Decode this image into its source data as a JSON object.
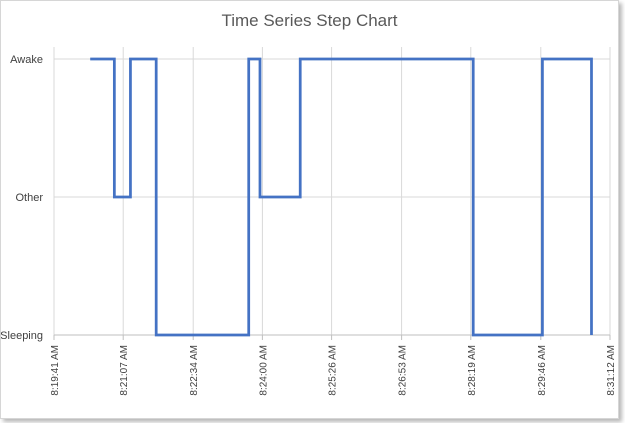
{
  "chart_data": {
    "type": "line",
    "title": "Time Series Step Chart",
    "xlabel": "",
    "ylabel": "",
    "y_categories": [
      "Sleeping",
      "Other",
      "Awake"
    ],
    "x_tick_labels": [
      "8:19:41 AM",
      "8:21:07 AM",
      "8:22:34 AM",
      "8:24:00 AM",
      "8:25:26 AM",
      "8:26:53 AM",
      "8:28:19 AM",
      "8:29:46 AM",
      "8:31:12 AM"
    ],
    "x_range": [
      "8:19:41 AM",
      "8:31:12 AM"
    ],
    "series": [
      {
        "points": [
          {
            "x": "8:20:26 AM",
            "y": "Awake"
          },
          {
            "x": "8:20:56 AM",
            "y": "Awake"
          },
          {
            "x": "8:20:56 AM",
            "y": "Other"
          },
          {
            "x": "8:21:16 AM",
            "y": "Other"
          },
          {
            "x": "8:21:16 AM",
            "y": "Awake"
          },
          {
            "x": "8:21:48 AM",
            "y": "Awake"
          },
          {
            "x": "8:21:48 AM",
            "y": "Sleeping"
          },
          {
            "x": "8:23:43 AM",
            "y": "Sleeping"
          },
          {
            "x": "8:23:43 AM",
            "y": "Awake"
          },
          {
            "x": "8:23:57 AM",
            "y": "Awake"
          },
          {
            "x": "8:23:57 AM",
            "y": "Other"
          },
          {
            "x": "8:24:47 AM",
            "y": "Other"
          },
          {
            "x": "8:24:47 AM",
            "y": "Awake"
          },
          {
            "x": "8:28:22 AM",
            "y": "Awake"
          },
          {
            "x": "8:28:22 AM",
            "y": "Sleeping"
          },
          {
            "x": "8:29:48 AM",
            "y": "Sleeping"
          },
          {
            "x": "8:29:48 AM",
            "y": "Awake"
          },
          {
            "x": "8:30:49 AM",
            "y": "Awake"
          },
          {
            "x": "8:30:49 AM",
            "y": "Sleeping"
          }
        ]
      }
    ],
    "grid": {
      "horizontal": true,
      "vertical": true
    },
    "legend": "none",
    "colors": {
      "line": "#4472c4",
      "grid": "#d9d9d9",
      "axis": "#bfbfbf",
      "text": "#404040",
      "title": "#595959"
    }
  }
}
